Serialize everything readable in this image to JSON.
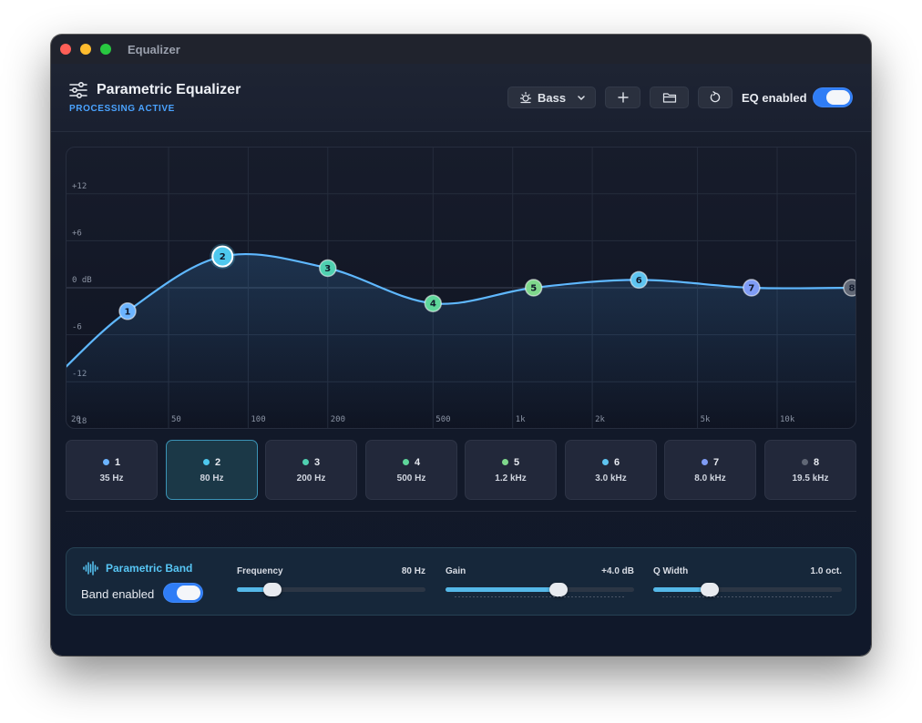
{
  "window": {
    "title": "Equalizer"
  },
  "header": {
    "title": "Parametric Equalizer",
    "status": "PROCESSING ACTIVE",
    "preset_label": "Bass",
    "eq_enabled_label": "EQ enabled",
    "eq_enabled": true,
    "icons": {
      "app": "sliders-icon",
      "preset": "sun-icon",
      "add": "plus-icon",
      "folder": "folder-icon",
      "reset": "reset-icon"
    }
  },
  "graph": {
    "y_labels": [
      "+12",
      "+6",
      "0 dB",
      "-6",
      "-12",
      "-18"
    ],
    "x_labels": [
      "20",
      "50",
      "100",
      "200",
      "500",
      "1k",
      "2k",
      "5k",
      "10k"
    ],
    "accent": "#5fb8ff"
  },
  "bands": [
    {
      "num": "1",
      "freq": "35 Hz",
      "gain_db": -3,
      "color": "#6cb4ff"
    },
    {
      "num": "2",
      "freq": "80 Hz",
      "gain_db": 4,
      "color": "#4ec8ee",
      "active": true
    },
    {
      "num": "3",
      "freq": "200 Hz",
      "gain_db": 2.5,
      "color": "#4fd0b0"
    },
    {
      "num": "4",
      "freq": "500 Hz",
      "gain_db": -2,
      "color": "#5ed69a"
    },
    {
      "num": "5",
      "freq": "1.2 kHz",
      "gain_db": 0,
      "color": "#7fd88c"
    },
    {
      "num": "6",
      "freq": "3.0 kHz",
      "gain_db": 1,
      "color": "#5ec4f0"
    },
    {
      "num": "7",
      "freq": "8.0 kHz",
      "gain_db": 0,
      "color": "#7f9cf5"
    },
    {
      "num": "8",
      "freq": "19.5 kHz",
      "gain_db": 0,
      "color": "#606775"
    }
  ],
  "panel": {
    "title": "Parametric Band",
    "band_enabled_label": "Band enabled",
    "band_enabled": true,
    "icon": "waveform-icon",
    "frequency": {
      "label": "Frequency",
      "value": "80 Hz",
      "level": 0.19
    },
    "gain": {
      "label": "Gain",
      "value": "+4.0 dB",
      "level": 0.6
    },
    "q": {
      "label": "Q Width",
      "value": "1.0 oct.",
      "level": 0.3
    }
  }
}
